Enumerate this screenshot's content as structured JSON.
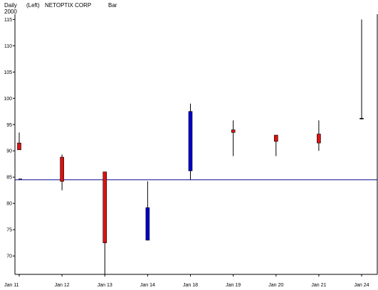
{
  "header": {
    "period": "Daily",
    "side": "(Left)",
    "symbol": "NETOPTIX CORP",
    "style": "Bar",
    "year": "2000"
  },
  "chart_data": {
    "type": "candlestick",
    "title": "",
    "xlabel": "",
    "ylabel": "",
    "ylim": [
      66.5,
      116
    ],
    "yticks": [
      70,
      75,
      80,
      85,
      90,
      95,
      100,
      105,
      110,
      115
    ],
    "x_tick_labels": [
      "Jan 11",
      "Jan 12",
      "Jan 13",
      "Jan 14",
      "Jan 18",
      "Jan 19",
      "Jan 20",
      "Jan 21",
      "Jan 24"
    ],
    "reference_line": {
      "value": 84.5,
      "color": "#00008b"
    },
    "colors": {
      "up": "#0000cc",
      "down": "#dd1111",
      "wick": "#000000"
    },
    "candles": [
      {
        "date": "Jan 11",
        "open": 91.5,
        "high": 93.5,
        "low": 90.2,
        "close": 90.2
      },
      {
        "date": "Jan 12",
        "open": 88.8,
        "high": 89.3,
        "low": 82.5,
        "close": 84.2
      },
      {
        "date": "Jan 13",
        "open": 86.0,
        "high": 86.0,
        "low": 66.5,
        "close": 72.5
      },
      {
        "date": "Jan 14",
        "open": 73.0,
        "high": 84.2,
        "low": 73.0,
        "close": 79.2
      },
      {
        "date": "Jan 18",
        "open": 86.2,
        "high": 99.0,
        "low": 84.5,
        "close": 97.5
      },
      {
        "date": "Jan 19",
        "open": 94.0,
        "high": 95.8,
        "low": 89.0,
        "close": 93.5
      },
      {
        "date": "Jan 20",
        "open": 93.0,
        "high": 93.0,
        "low": 89.0,
        "close": 91.8
      },
      {
        "date": "Jan 21",
        "open": 93.2,
        "high": 95.8,
        "low": 90.0,
        "close": 91.5
      },
      {
        "date": "Jan 24",
        "open": 96.2,
        "high": 115.0,
        "low": 96.0,
        "close": 96.2
      }
    ]
  }
}
